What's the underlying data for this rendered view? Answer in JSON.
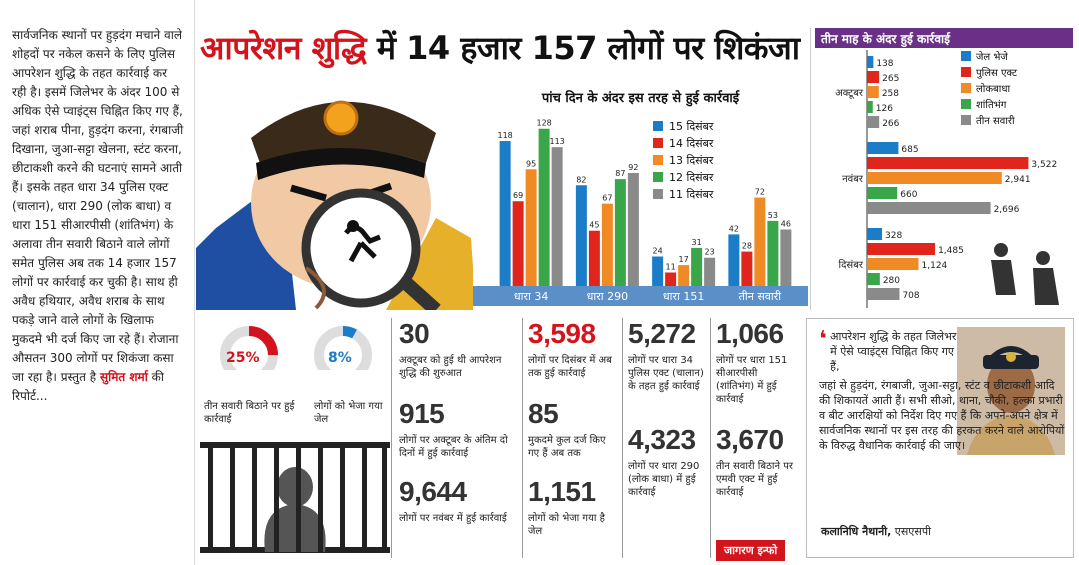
{
  "header": {
    "title_red": "आपरेशन शुद्धि",
    "title_rest": "में 14 हजार 157 लोगों पर शिकंजा"
  },
  "left_column": {
    "body": "सार्वजनिक स्थानों पर हुड़दंग मचाने वाले शोहदों पर नकेल कसने के लिए पुलिस आपरेशन शुद्धि के तहत कार्रवाई कर रही है। इसमें जिलेभर के अंदर 100 से अधिक ऐसे प्वाइंट्स चिह्नित किए गए हैं, जहां शराब पीना, हुड़दंग करना, रंगबाजी दिखाना, जुआ-सट्टा खेलना, स्टंट करना, छीटाकशी करने की घटनाएं सामने आती हैं। इसके तहत धारा 34 पुलिस एक्ट (चालान), धारा 290 (लोक बाधा) व धारा 151 सीआरपीसी (शांतिभंग) के अलावा तीन सवारी बिठाने वाले लोगों समेत पुलिस अब तक 14 हजार 157 लोगों पर कार्रवाई कर चुकी है। साथ ही अवैध हथियार, अवैध शराब के साथ पकड़े जाने वाले लोगों के खिलाफ मुकदमे भी दर्ज किए जा रहे हैं। रोजाना औसतन 300 लोगों पर शिकंजा कसा जा रहा है। प्रस्तुत है",
    "author": "सुमित शर्मा",
    "tail": "की रिपोर्ट..."
  },
  "colors": {
    "blue": "#1b7cc7",
    "red": "#e0261c",
    "orange": "#f08a24",
    "green": "#3aa64a",
    "gray": "#8a8a8a",
    "accent": "#d4141c",
    "purple": "#6a2f86"
  },
  "chart_data": [
    {
      "type": "bar",
      "title": "पांच दिन के अंदर इस तरह से हुई कार्रवाई",
      "categories": [
        "धारा 34",
        "धारा 290",
        "धारा 151",
        "तीन सवारी"
      ],
      "series": [
        {
          "name": "15 दिसंबर",
          "color": "#1b7cc7",
          "values": [
            118,
            82,
            24,
            42
          ]
        },
        {
          "name": "14 दिसंबर",
          "color": "#e0261c",
          "values": [
            69,
            45,
            11,
            28
          ]
        },
        {
          "name": "13 दिसंबर",
          "color": "#f08a24",
          "values": [
            95,
            67,
            17,
            72
          ]
        },
        {
          "name": "12 दिसंबर",
          "color": "#3aa64a",
          "values": [
            128,
            87,
            31,
            53
          ]
        },
        {
          "name": "11 दिसंबर",
          "color": "#8a8a8a",
          "values": [
            113,
            92,
            23,
            46
          ]
        }
      ],
      "ylim": [
        0,
        140
      ],
      "legend": "top-right"
    },
    {
      "type": "bar",
      "orientation": "horizontal",
      "title": "तीन माह के अंदर हुई कार्रवाई",
      "categories": [
        "अक्टूबर",
        "नवंबर",
        "दिसंबर"
      ],
      "series": [
        {
          "name": "जेल भेजे",
          "color": "#1b7cc7",
          "values": [
            138,
            685,
            328
          ]
        },
        {
          "name": "पुलिस एक्ट",
          "color": "#e0261c",
          "values": [
            265,
            3522,
            1485
          ]
        },
        {
          "name": "लोकबाधा",
          "color": "#f08a24",
          "values": [
            258,
            2941,
            1124
          ]
        },
        {
          "name": "शांतिभंग",
          "color": "#3aa64a",
          "values": [
            126,
            660,
            280
          ]
        },
        {
          "name": "तीन सवारी",
          "color": "#8a8a8a",
          "values": [
            266,
            2696,
            708
          ]
        }
      ],
      "xlim": [
        0,
        3600
      ],
      "legend": "top-right"
    }
  ],
  "bottom": {
    "pct1": {
      "value": "25%",
      "fraction": 0.25,
      "label": "तीन सवारी बिठाने पर हुई कार्रवाई"
    },
    "pct2": {
      "value": "8%",
      "fraction": 0.08,
      "label": "लोगों को भेजा गया जेल"
    },
    "stats": [
      {
        "num": "30",
        "text": "अक्टूबर को हुई थी आपरेशन शुद्धि की शुरुआत"
      },
      {
        "num": "915",
        "text": "लोगों पर अक्टूबर के अंतिम दो दिनों में हुई कार्रवाई"
      },
      {
        "num": "9,644",
        "text": "लोगों पर नवंबर में हुई कार्रवाई"
      },
      {
        "num": "3,598",
        "text": "लोगों पर दिसंबर में अब तक हुई कार्रवाई"
      },
      {
        "num": "85",
        "text": "मुकदमे कुल दर्ज किए गए हैं अब तक"
      },
      {
        "num": "1,151",
        "text": "लोगों को भेजा गया है जेल"
      },
      {
        "num": "5,272",
        "text": "लोगों पर धारा 34 पुलिस एक्ट (चालान) के तहत हुई कार्रवाई"
      },
      {
        "num": "4,323",
        "text": "लोगों पर धारा 290 (लोक बाधा) में हुई कार्रवाई"
      },
      {
        "num": "1,066",
        "text": "लोगों पर धारा 151 सीआरपीसी (शांतिभंग) में हुई कार्रवाई"
      },
      {
        "num": "3,670",
        "text": "तीन सवारी बिठाने पर एमवी एक्ट में हुई कार्रवाई"
      }
    ],
    "credit": "जागरण इन्फो"
  },
  "quote": {
    "text1": "आपरेशन शुद्धि के तहत जिलेभर में ऐसे प्वाइंट्स चिह्नित किए गए हैं,",
    "text2": "जहां से हुड़दंग, रंगबाजी, जुआ-सट्टा, स्टंट व छीटाकशी आदि की शिकायतें आती हैं। सभी सीओ, थाना, चौकी, हल्का प्रभारी व बीट आरक्षियों को निर्देश दिए गए हैं कि अपने-अपने क्षेत्र में सार्वजनिक स्थानों पर इस तरह की हरकत करने वाले आरोपियों के विरुद्ध वैधानिक कार्रवाई की जाए।",
    "author": "कलानिधि नैथानी,",
    "role": "एसएसपी"
  }
}
